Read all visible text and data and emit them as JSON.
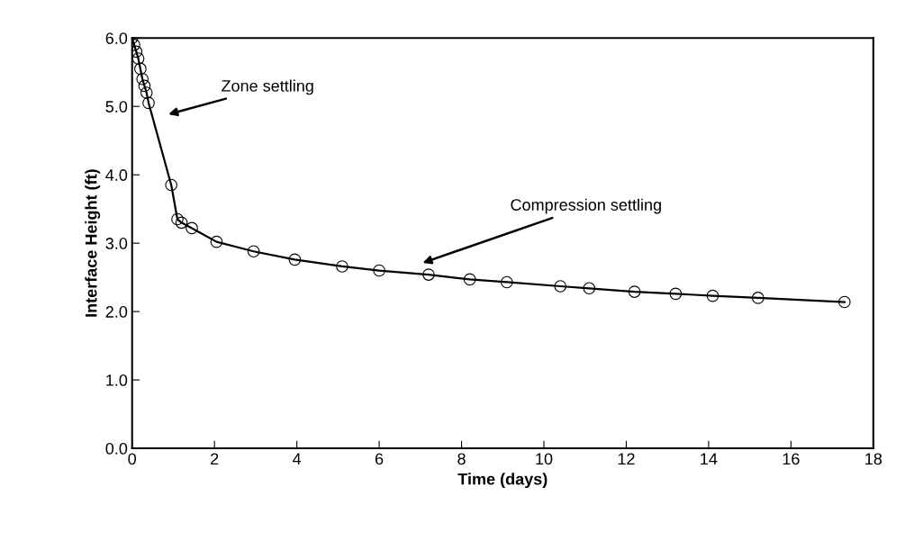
{
  "chart_data": {
    "type": "line",
    "xlabel": "Time (days)",
    "ylabel": "Interface Height (ft)",
    "xlim": [
      0,
      18
    ],
    "xticks": [
      0,
      2,
      4,
      6,
      8,
      10,
      12,
      14,
      16,
      18
    ],
    "ylim": [
      0.0,
      6.0
    ],
    "yticks": [
      {
        "value": 0,
        "label": "0.0"
      },
      {
        "value": 1,
        "label": "1.0"
      },
      {
        "value": 2,
        "label": "2.0"
      },
      {
        "value": 3,
        "label": "3.0"
      },
      {
        "value": 4,
        "label": "4.0"
      },
      {
        "value": 5,
        "label": "5.0"
      },
      {
        "value": 6,
        "label": "6.0"
      }
    ],
    "grid": false,
    "marker": "circle",
    "line_style": "solid",
    "series": [
      {
        "color": "#000000",
        "x": [
          0,
          0.05,
          0.1,
          0.15,
          0.2,
          0.25,
          0.3,
          0.35,
          0.4,
          0.95,
          1.1,
          1.2,
          1.45,
          2.05,
          2.95,
          3.95,
          5.1,
          6.0,
          7.2,
          8.2,
          9.1,
          10.4,
          11.1,
          12.2,
          13.2,
          14.1,
          15.2,
          17.3
        ],
        "values": [
          6.0,
          5.9,
          5.8,
          5.7,
          5.55,
          5.4,
          5.3,
          5.2,
          5.05,
          3.85,
          3.35,
          3.3,
          3.22,
          3.02,
          2.88,
          2.76,
          2.66,
          2.6,
          2.54,
          2.47,
          2.43,
          2.37,
          2.34,
          2.29,
          2.26,
          2.23,
          2.2,
          2.14
        ]
      }
    ],
    "annotations": [
      "Zone settling",
      "Compression settling"
    ]
  }
}
